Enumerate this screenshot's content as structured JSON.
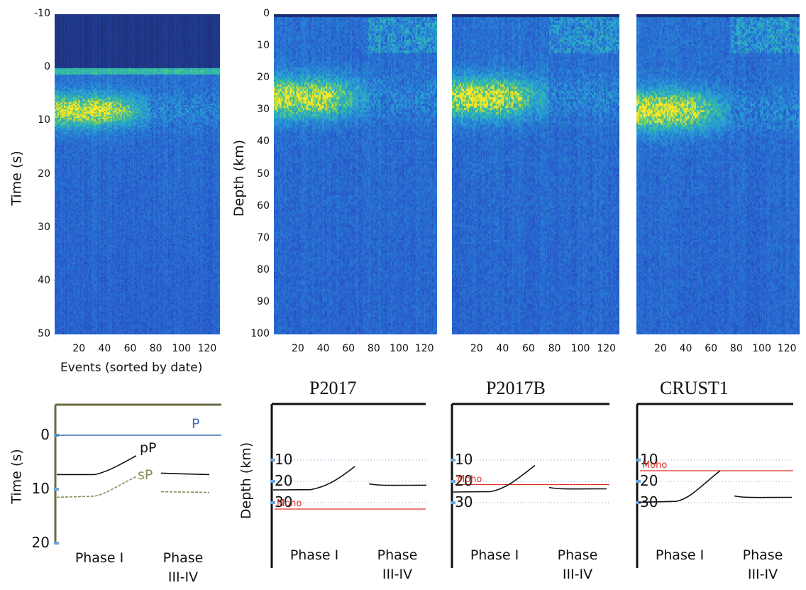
{
  "chart_data": [
    {
      "type": "heatmap",
      "panel": "receiver-function-time",
      "ylabel": "Time (s)",
      "xlabel": "Events (sorted by date)",
      "yticks": [
        "-10",
        "0",
        "10",
        "20",
        "30",
        "40",
        "50"
      ],
      "xticks": [
        "20",
        "40",
        "60",
        "80",
        "100",
        "120"
      ],
      "ylim": [
        -10,
        50
      ],
      "xlim": [
        1,
        130
      ],
      "colormap": [
        "#1c2b6e",
        "#2b5fcf",
        "#2aa8d8",
        "#36c28c",
        "#f5e62a"
      ],
      "bright_band": {
        "y_center": 8,
        "x_range": [
          1,
          75
        ]
      }
    },
    {
      "type": "heatmap",
      "panel": "depth-P2017",
      "ylabel": "Depth (km)",
      "yticks": [
        "0",
        "10",
        "20",
        "30",
        "40",
        "50",
        "60",
        "70",
        "80",
        "90",
        "100"
      ],
      "xticks": [
        "20",
        "40",
        "60",
        "80",
        "100",
        "120"
      ],
      "ylim": [
        0,
        100
      ],
      "xlim": [
        1,
        130
      ],
      "bright_band": {
        "y_center": 26,
        "x_range": [
          1,
          75
        ]
      }
    },
    {
      "type": "heatmap",
      "panel": "depth-P2017B",
      "yticks": [],
      "xticks": [
        "20",
        "40",
        "60",
        "80",
        "100",
        "120"
      ],
      "ylim": [
        0,
        100
      ],
      "xlim": [
        1,
        130
      ],
      "bright_band": {
        "y_center": 26,
        "x_range": [
          1,
          75
        ]
      }
    },
    {
      "type": "heatmap",
      "panel": "depth-CRUST1",
      "yticks": [],
      "xticks": [
        "20",
        "40",
        "60",
        "80",
        "100",
        "120"
      ],
      "ylim": [
        0,
        100
      ],
      "xlim": [
        1,
        130
      ],
      "bright_band": {
        "y_center": 30,
        "x_range": [
          1,
          75
        ]
      }
    },
    {
      "type": "line",
      "panel": "schematic-time",
      "ylabel": "Time (s)",
      "yticks": [
        "0",
        "10",
        "20"
      ],
      "ylim": [
        -5,
        20
      ],
      "phases": [
        "Phase I",
        "Phase\nIII-IV"
      ],
      "series": [
        {
          "name": "P",
          "y": 0,
          "color": "#3d6fb0"
        },
        {
          "name": "pP",
          "phase1": [
            7.3,
            7.3,
            3.8
          ],
          "phase34": 7.3,
          "color": "#111111"
        },
        {
          "name": "sP",
          "phase1": [
            11.5,
            11.3,
            7.7
          ],
          "phase34": 10.6,
          "color": "#8a8a55"
        }
      ]
    },
    {
      "type": "line",
      "title": "P2017",
      "ylabel": "Depth (km)",
      "yticks": [
        "10",
        "20",
        "30"
      ],
      "ylim": [
        0,
        40
      ],
      "phases": [
        "Phase I",
        "Phase\nIII-IV"
      ],
      "moho": {
        "label": "Moho",
        "depth": 33
      },
      "phase1": [
        24,
        23.9,
        13
      ],
      "phase34": 21.8
    },
    {
      "type": "line",
      "title": "P2017B",
      "yticks": [
        "10",
        "20",
        "30"
      ],
      "ylim": [
        0,
        40
      ],
      "phases": [
        "Phase I",
        "Phase\nIII-IV"
      ],
      "moho": {
        "label": "Moho",
        "depth": 21.5
      },
      "phase1": [
        25,
        24.8,
        12.5
      ],
      "phase34": 23.5
    },
    {
      "type": "line",
      "title": "CRUST1",
      "yticks": [
        "10",
        "20",
        "30"
      ],
      "ylim": [
        0,
        40
      ],
      "phases": [
        "Phase I",
        "Phase\nIII-IV"
      ],
      "moho": {
        "label": "Moho",
        "depth": 15
      },
      "phase1": [
        29.8,
        29.4,
        15
      ],
      "phase34": 27.5
    }
  ]
}
